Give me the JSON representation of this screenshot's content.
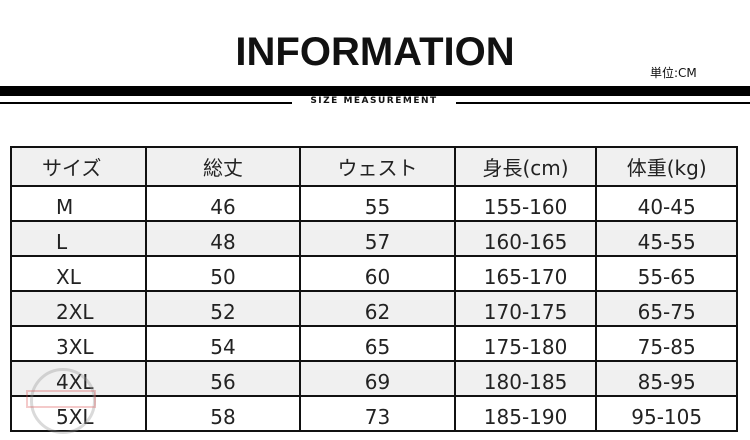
{
  "header": {
    "title": "INFORMATION",
    "unit": "単位:CM",
    "subtitle": "SIZE MEASUREMENT"
  },
  "table": {
    "columns": [
      "サイズ",
      "総丈",
      "ウェスト",
      "身長(cm)",
      "体重(kg)"
    ],
    "rows": [
      [
        "M",
        "46",
        "55",
        "155-160",
        "40-45"
      ],
      [
        "L",
        "48",
        "57",
        "160-165",
        "45-55"
      ],
      [
        "XL",
        "50",
        "60",
        "165-170",
        "55-65"
      ],
      [
        "2XL",
        "52",
        "62",
        "170-175",
        "65-75"
      ],
      [
        "3XL",
        "54",
        "65",
        "175-180",
        "75-85"
      ],
      [
        "4XL",
        "56",
        "69",
        "180-185",
        "85-95"
      ],
      [
        "5XL",
        "58",
        "73",
        "185-190",
        "95-105"
      ]
    ]
  },
  "colors": {
    "header_bg": "#f0f0f0",
    "stripe_bg": "#f0f0f0",
    "border": "#111111"
  }
}
